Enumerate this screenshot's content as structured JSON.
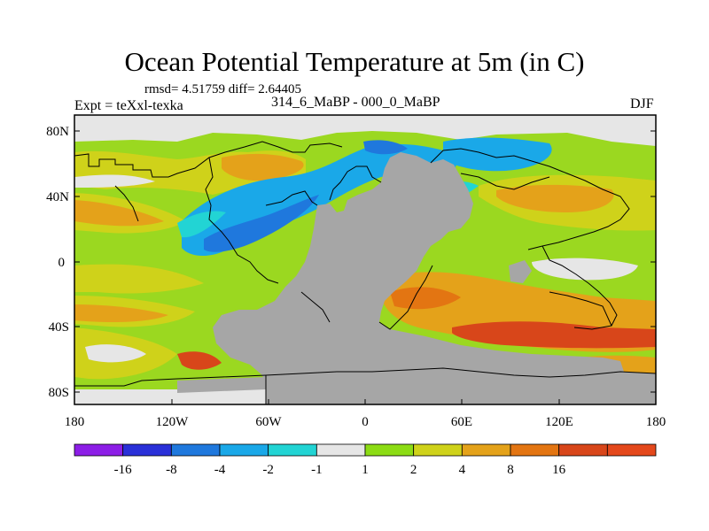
{
  "title": "Ocean Potential Temperature at 5m (in C)",
  "stats": "rmsd= 4.51759 diff= 2.64405",
  "experiment": "Expt = teXxl-texka",
  "difference_label": "314_6_MaBP - 000_0_MaBP",
  "season": "DJF",
  "axes": {
    "lat_ticks": [
      "80N",
      "40N",
      "0",
      "40S",
      "80S"
    ],
    "lon_ticks": [
      "180",
      "120W",
      "60W",
      "0",
      "60E",
      "120E",
      "180"
    ]
  },
  "colorbar": {
    "colors": [
      "#8c1ee6",
      "#2a30d8",
      "#1f78dd",
      "#1aa8e8",
      "#22d4d4",
      "#e6e6e6",
      "#8cdc14",
      "#cfd21a",
      "#e4a21a",
      "#e37512",
      "#d8461a",
      "#e4481c"
    ],
    "labels": [
      "-16",
      "-8",
      "-4",
      "-2",
      "-1",
      "1",
      "2",
      "4",
      "8",
      "16"
    ]
  },
  "map_colors": {
    "land": "#a6a6a6",
    "ocean_base": "#9bd820",
    "coast": "#000000"
  }
}
